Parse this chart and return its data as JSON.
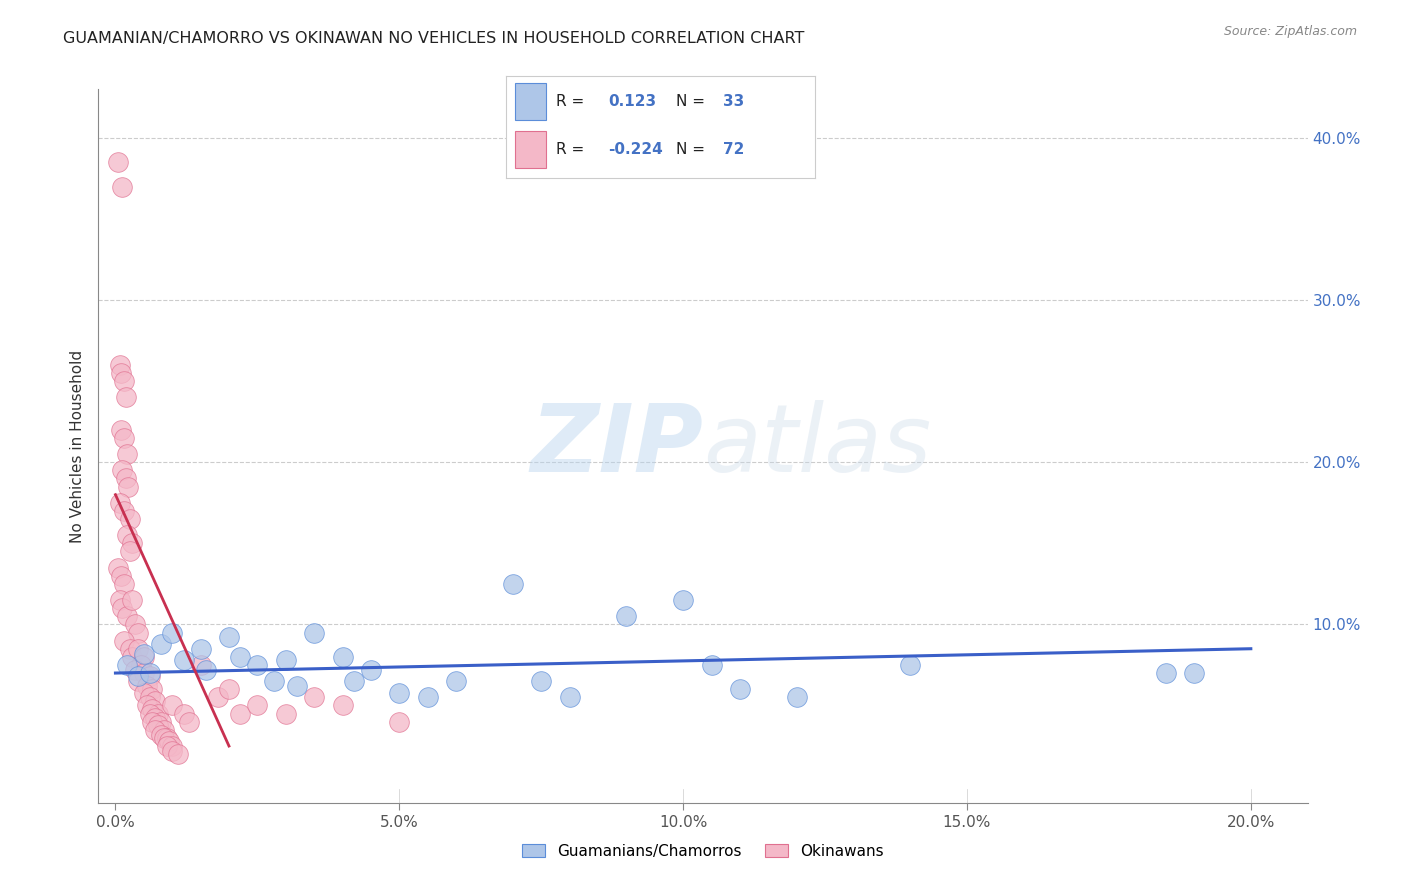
{
  "title": "GUAMANIAN/CHAMORRO VS OKINAWAN NO VEHICLES IN HOUSEHOLD CORRELATION CHART",
  "source": "Source: ZipAtlas.com",
  "ylabel": "No Vehicles in Household",
  "x_tick_labels": [
    "0.0%",
    "5.0%",
    "10.0%",
    "15.0%",
    "20.0%"
  ],
  "x_tick_vals": [
    0,
    5,
    10,
    15,
    20
  ],
  "y_tick_labels": [
    "10.0%",
    "20.0%",
    "30.0%",
    "40.0%"
  ],
  "y_tick_vals": [
    10,
    20,
    30,
    40
  ],
  "xlim": [
    -0.3,
    21
  ],
  "ylim": [
    -1.0,
    43
  ],
  "legend_labels": [
    "Guamanians/Chamorros",
    "Okinawans"
  ],
  "blue_color": "#aec6e8",
  "pink_color": "#f4b8c8",
  "blue_edge_color": "#5b8dd9",
  "pink_edge_color": "#e07090",
  "blue_line_color": "#3a5fc8",
  "pink_line_color": "#c83050",
  "r_blue": "0.123",
  "n_blue": "33",
  "r_pink": "-0.224",
  "n_pink": "72",
  "watermark_zip": "ZIP",
  "watermark_atlas": "atlas",
  "blue_scatter": [
    [
      0.2,
      7.5
    ],
    [
      0.4,
      6.8
    ],
    [
      0.5,
      8.2
    ],
    [
      0.6,
      7.0
    ],
    [
      0.8,
      8.8
    ],
    [
      1.0,
      9.5
    ],
    [
      1.2,
      7.8
    ],
    [
      1.5,
      8.5
    ],
    [
      1.6,
      7.2
    ],
    [
      2.0,
      9.2
    ],
    [
      2.2,
      8.0
    ],
    [
      2.5,
      7.5
    ],
    [
      2.8,
      6.5
    ],
    [
      3.0,
      7.8
    ],
    [
      3.2,
      6.2
    ],
    [
      3.5,
      9.5
    ],
    [
      4.0,
      8.0
    ],
    [
      4.2,
      6.5
    ],
    [
      4.5,
      7.2
    ],
    [
      5.0,
      5.8
    ],
    [
      5.5,
      5.5
    ],
    [
      6.0,
      6.5
    ],
    [
      7.0,
      12.5
    ],
    [
      7.5,
      6.5
    ],
    [
      8.0,
      5.5
    ],
    [
      9.0,
      10.5
    ],
    [
      10.0,
      11.5
    ],
    [
      10.5,
      7.5
    ],
    [
      11.0,
      6.0
    ],
    [
      12.0,
      5.5
    ],
    [
      14.0,
      7.5
    ],
    [
      18.5,
      7.0
    ],
    [
      19.0,
      7.0
    ]
  ],
  "pink_scatter": [
    [
      0.05,
      38.5
    ],
    [
      0.12,
      37.0
    ],
    [
      0.08,
      26.0
    ],
    [
      0.1,
      25.5
    ],
    [
      0.15,
      25.0
    ],
    [
      0.18,
      24.0
    ],
    [
      0.1,
      22.0
    ],
    [
      0.15,
      21.5
    ],
    [
      0.2,
      20.5
    ],
    [
      0.12,
      19.5
    ],
    [
      0.18,
      19.0
    ],
    [
      0.22,
      18.5
    ],
    [
      0.08,
      17.5
    ],
    [
      0.15,
      17.0
    ],
    [
      0.25,
      16.5
    ],
    [
      0.2,
      15.5
    ],
    [
      0.3,
      15.0
    ],
    [
      0.25,
      14.5
    ],
    [
      0.05,
      13.5
    ],
    [
      0.1,
      13.0
    ],
    [
      0.15,
      12.5
    ],
    [
      0.08,
      11.5
    ],
    [
      0.12,
      11.0
    ],
    [
      0.2,
      10.5
    ],
    [
      0.3,
      11.5
    ],
    [
      0.35,
      10.0
    ],
    [
      0.4,
      9.5
    ],
    [
      0.15,
      9.0
    ],
    [
      0.25,
      8.5
    ],
    [
      0.3,
      8.0
    ],
    [
      0.4,
      8.5
    ],
    [
      0.5,
      8.0
    ],
    [
      0.45,
      7.5
    ],
    [
      0.35,
      7.2
    ],
    [
      0.5,
      7.0
    ],
    [
      0.6,
      6.8
    ],
    [
      0.4,
      6.5
    ],
    [
      0.55,
      6.2
    ],
    [
      0.65,
      6.0
    ],
    [
      0.5,
      5.8
    ],
    [
      0.6,
      5.5
    ],
    [
      0.7,
      5.3
    ],
    [
      0.55,
      5.0
    ],
    [
      0.65,
      4.8
    ],
    [
      0.75,
      4.5
    ],
    [
      0.6,
      4.5
    ],
    [
      0.7,
      4.2
    ],
    [
      0.8,
      4.0
    ],
    [
      0.65,
      4.0
    ],
    [
      0.75,
      3.8
    ],
    [
      0.85,
      3.5
    ],
    [
      0.7,
      3.5
    ],
    [
      0.8,
      3.2
    ],
    [
      0.9,
      3.0
    ],
    [
      0.85,
      3.0
    ],
    [
      0.95,
      2.8
    ],
    [
      1.0,
      2.5
    ],
    [
      0.9,
      2.5
    ],
    [
      1.0,
      2.2
    ],
    [
      1.1,
      2.0
    ],
    [
      1.0,
      5.0
    ],
    [
      1.2,
      4.5
    ],
    [
      1.3,
      4.0
    ],
    [
      1.5,
      7.5
    ],
    [
      1.8,
      5.5
    ],
    [
      2.0,
      6.0
    ],
    [
      2.2,
      4.5
    ],
    [
      2.5,
      5.0
    ],
    [
      3.0,
      4.5
    ],
    [
      3.5,
      5.5
    ],
    [
      4.0,
      5.0
    ],
    [
      5.0,
      4.0
    ]
  ],
  "pink_line_x_start": 0.0,
  "pink_line_x_end": 2.0,
  "pink_line_y_start": 18.0,
  "pink_line_y_end": 2.5,
  "blue_line_x_start": 0.0,
  "blue_line_x_end": 20.0,
  "blue_line_y_start": 7.0,
  "blue_line_y_end": 8.5
}
